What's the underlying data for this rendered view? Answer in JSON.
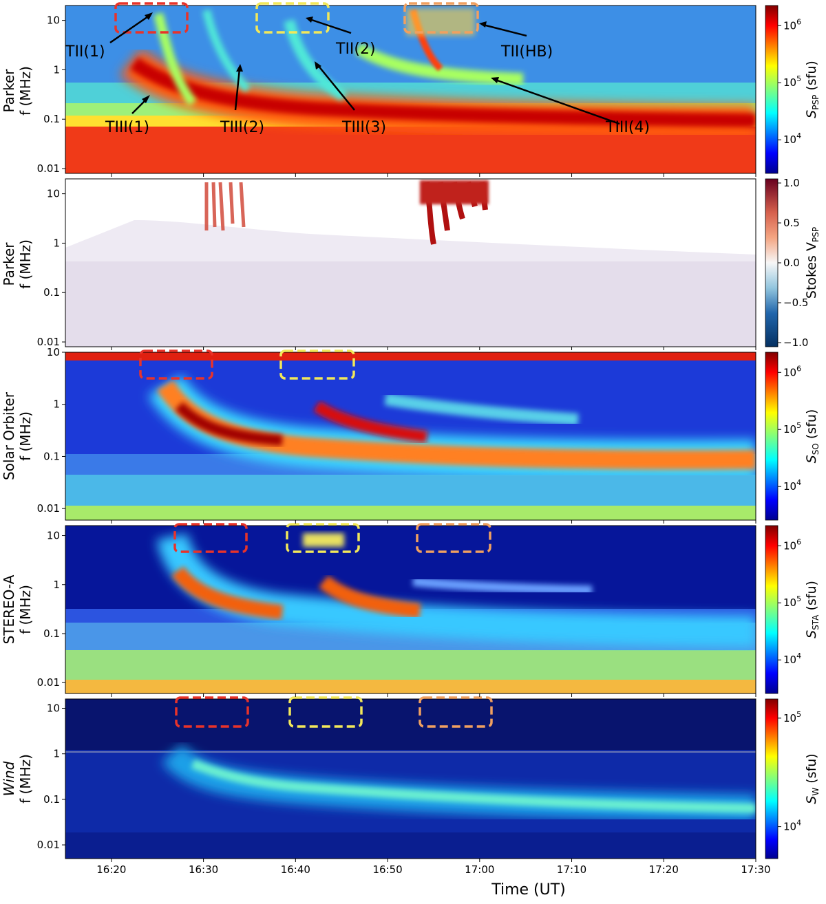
{
  "figure": {
    "x_axis_label": "Time (UT)",
    "x_tick_labels": [
      "16:20",
      "16:30",
      "16:40",
      "16:50",
      "17:00",
      "17:10",
      "17:20",
      "17:30"
    ]
  },
  "chart_data": [
    {
      "type": "heatmap",
      "instrument": "Parker",
      "ylabel": "f (MHz)",
      "yscale": "log",
      "ylim": [
        0.008,
        20
      ],
      "y_tick_labels": [
        "10",
        "1",
        "0.1",
        "0.01"
      ],
      "xlim": [
        "16:15",
        "17:30"
      ],
      "colorbar": {
        "label": "S_PSP (sfu)",
        "label_main": "S",
        "label_sub": "PSP",
        "label_unit": " (sfu)",
        "scale": "log",
        "ticks": [
          "10^6",
          "10^5",
          "10^4"
        ],
        "colormap": "jet"
      },
      "annotations": [
        "TII(1)",
        "TII(2)",
        "TII(HB)",
        "TIII(1)",
        "TIII(2)",
        "TIII(3)",
        "TIII(4)"
      ],
      "boxes": [
        {
          "color": "#e8332a",
          "t_start": "16:20",
          "t_end": "16:29"
        },
        {
          "color": "#f2e85a",
          "t_start": "16:36",
          "t_end": "16:44"
        },
        {
          "color": "#f0a060",
          "t_start": "16:53",
          "t_end": "17:01"
        }
      ]
    },
    {
      "type": "heatmap",
      "instrument": "Parker",
      "ylabel": "f (MHz)",
      "yscale": "log",
      "ylim": [
        0.008,
        20
      ],
      "y_tick_labels": [
        "10",
        "1",
        "0.1",
        "0.01"
      ],
      "xlim": [
        "16:15",
        "17:30"
      ],
      "colorbar": {
        "label": "Stokes V_PSP",
        "label_main": "Stokes V",
        "label_sub": "PSP",
        "label_unit": "",
        "scale": "linear",
        "ticks": [
          "1.0",
          "0.5",
          "0.0",
          "−0.5",
          "−1.0"
        ],
        "colormap": "RdBu_r"
      }
    },
    {
      "type": "heatmap",
      "instrument": "Solar Orbiter",
      "ylabel": "f (MHz)",
      "yscale": "log",
      "ylim": [
        0.006,
        10
      ],
      "y_tick_labels": [
        "10",
        "1",
        "0.1",
        "0.01"
      ],
      "xlim": [
        "16:15",
        "17:30"
      ],
      "colorbar": {
        "label": "S_SO (sfu)",
        "label_main": "S",
        "label_sub": "SO",
        "label_unit": " (sfu)",
        "scale": "log",
        "ticks": [
          "10^6",
          "10^5",
          "10^4"
        ],
        "colormap": "jet"
      },
      "boxes": [
        {
          "color": "#e8332a",
          "t_start": "16:24",
          "t_end": "16:32"
        },
        {
          "color": "#f2e85a",
          "t_start": "16:38",
          "t_end": "16:47"
        }
      ]
    },
    {
      "type": "heatmap",
      "instrument": "STEREO-A",
      "ylabel": "f (MHz)",
      "yscale": "log",
      "ylim": [
        0.006,
        16
      ],
      "y_tick_labels": [
        "10",
        "1",
        "0.1",
        "0.01"
      ],
      "xlim": [
        "16:15",
        "17:30"
      ],
      "colorbar": {
        "label": "S_STA (sfu)",
        "label_main": "S",
        "label_sub": "STA",
        "label_unit": " (sfu)",
        "scale": "log",
        "ticks": [
          "10^6",
          "10^5",
          "10^4"
        ],
        "colormap": "jet"
      },
      "boxes": [
        {
          "color": "#e8332a",
          "t_start": "16:27",
          "t_end": "16:34"
        },
        {
          "color": "#f2e85a",
          "t_start": "16:39",
          "t_end": "16:46"
        },
        {
          "color": "#f0a060",
          "t_start": "16:54",
          "t_end": "17:02"
        }
      ]
    },
    {
      "type": "heatmap",
      "instrument": "Wind",
      "ylabel": "f (MHz)",
      "yscale": "log",
      "ylim": [
        0.005,
        16
      ],
      "y_tick_labels": [
        "10",
        "1",
        "0.1",
        "0.01"
      ],
      "xlim": [
        "16:15",
        "17:30"
      ],
      "colorbar": {
        "label": "S_W (sfu)",
        "label_main": "S",
        "label_sub": "W",
        "label_unit": " (sfu)",
        "scale": "log",
        "ticks": [
          "10^5",
          "10^4"
        ],
        "colormap": "jet"
      },
      "boxes": [
        {
          "color": "#e8332a",
          "t_start": "16:27",
          "t_end": "16:35"
        },
        {
          "color": "#f2e85a",
          "t_start": "16:39",
          "t_end": "16:47"
        },
        {
          "color": "#f0a060",
          "t_start": "16:54",
          "t_end": "17:02"
        }
      ]
    }
  ]
}
